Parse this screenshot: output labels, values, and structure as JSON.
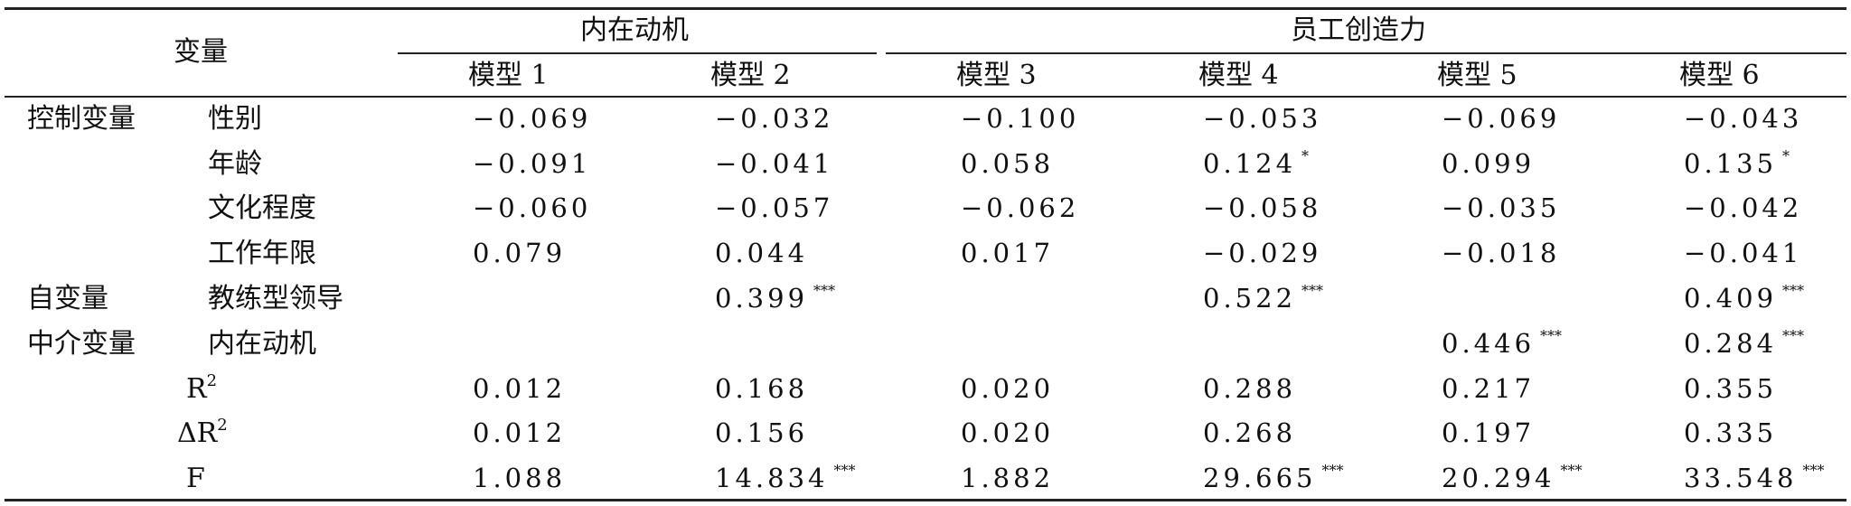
{
  "header": {
    "variable": "变量",
    "groups": [
      "内在动机",
      "员工创造力"
    ],
    "models": [
      "模型 1",
      "模型 2",
      "模型 3",
      "模型 4",
      "模型 5",
      "模型 6"
    ]
  },
  "rows": [
    {
      "category": "控制变量",
      "name": "性别",
      "values": [
        "−0.069",
        "−0.032",
        "−0.100",
        "−0.053",
        "−0.069",
        "−0.043"
      ],
      "stars": [
        "",
        "",
        "",
        "",
        "",
        ""
      ]
    },
    {
      "category": "",
      "name": "年龄",
      "values": [
        "−0.091",
        "−0.041",
        "0.058",
        "0.124",
        "0.099",
        "0.135"
      ],
      "stars": [
        "",
        "",
        "",
        "*",
        "",
        "*"
      ]
    },
    {
      "category": "",
      "name": "文化程度",
      "values": [
        "−0.060",
        "−0.057",
        "−0.062",
        "−0.058",
        "−0.035",
        "−0.042"
      ],
      "stars": [
        "",
        "",
        "",
        "",
        "",
        ""
      ]
    },
    {
      "category": "",
      "name": "工作年限",
      "values": [
        "0.079",
        "0.044",
        "0.017",
        "−0.029",
        "−0.018",
        "−0.041"
      ],
      "stars": [
        "",
        "",
        "",
        "",
        "",
        ""
      ]
    },
    {
      "category": "自变量",
      "name": "教练型领导",
      "values": [
        "",
        "0.399",
        "",
        "0.522",
        "",
        "0.409"
      ],
      "stars": [
        "",
        "***",
        "",
        "***",
        "",
        "***"
      ]
    },
    {
      "category": "中介变量",
      "name": "内在动机",
      "values": [
        "",
        "",
        "",
        "",
        "0.446",
        "0.284"
      ],
      "stars": [
        "",
        "",
        "",
        "",
        "***",
        "***"
      ]
    }
  ],
  "stats": [
    {
      "prefix": "",
      "base": "R",
      "sup": "2",
      "values": [
        "0.012",
        "0.168",
        "0.020",
        "0.288",
        "0.217",
        "0.355"
      ],
      "stars": [
        "",
        "",
        "",
        "",
        "",
        ""
      ]
    },
    {
      "prefix": "Δ",
      "base": "R",
      "sup": "2",
      "values": [
        "0.012",
        "0.156",
        "0.020",
        "0.268",
        "0.197",
        "0.335"
      ],
      "stars": [
        "",
        "",
        "",
        "",
        "",
        ""
      ]
    },
    {
      "prefix": "",
      "base": "F",
      "sup": "",
      "values": [
        "1.088",
        "14.834",
        "1.882",
        "29.665",
        "20.294",
        "33.548"
      ],
      "stars": [
        "",
        "***",
        "",
        "***",
        "***",
        "***"
      ]
    }
  ]
}
